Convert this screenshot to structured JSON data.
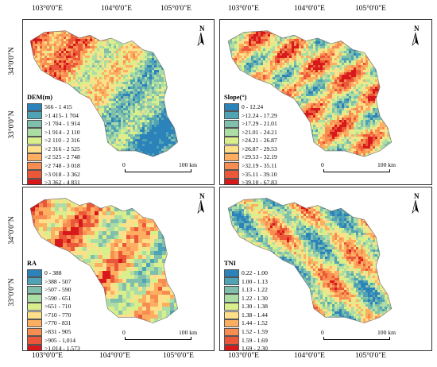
{
  "axes": {
    "top": [
      "103°0'0\"E",
      "104°0'0\"E",
      "105°0'0\"E"
    ],
    "bottom": [
      "103°0'0\"E",
      "104°0'0\"E",
      "105°0'0\"E"
    ],
    "left_top": [
      "34°0'0\"N",
      "33°0'0\"N"
    ],
    "left_bottom": [
      "34°0'0\"N",
      "33°0'0\"N"
    ]
  },
  "panels": [
    {
      "id": "dem",
      "legend_title": "DEM(m)",
      "classes": [
        "566 - 1 415",
        ">1 415- 1 704",
        ">1 704 - 1 914",
        ">1 914 - 2 110",
        ">2 110 - 2 316",
        ">2 316 - 2 525",
        ">2 525 - 2 748",
        ">2 748 - 3 018",
        ">3 018 - 3 362",
        ">3 362 - 4 831"
      ],
      "colors": [
        "#2b83ba",
        "#4fa3b4",
        "#80bfac",
        "#abdda4",
        "#d9ef8b",
        "#fee08b",
        "#fdae61",
        "#f88d52",
        "#ea5739",
        "#d7191c"
      ],
      "north": "N",
      "scale": {
        "start": "0",
        "end": "100 km"
      }
    },
    {
      "id": "slope",
      "legend_title": "Slope(°)",
      "classes": [
        "0 - 12.24",
        ">12.24 - 17.29",
        ">17.29 - 21.01",
        ">21.01 - 24.21",
        ">24.21 - 26.87",
        ">26.87 - 29.53",
        ">29.53 - 32.19",
        ">32.19 - 35.11",
        ">35.11 - 39.10",
        ">39.10 - 67.83"
      ],
      "colors": [
        "#2b83ba",
        "#4fa3b4",
        "#80bfac",
        "#abdda4",
        "#d9ef8b",
        "#fee08b",
        "#fdae61",
        "#f88d52",
        "#ea5739",
        "#d7191c"
      ],
      "north": "N",
      "scale": {
        "start": "0",
        "end": "100 km"
      }
    },
    {
      "id": "ra",
      "legend_title": "RA",
      "classes": [
        "0 - 388",
        ">388 - 507",
        ">507 - 590",
        ">590 - 651",
        ">651 - 710",
        ">710 - 770",
        ">770 - 831",
        ">831 - 905",
        ">905 - 1,014",
        ">1,014 - 1,573"
      ],
      "colors": [
        "#2b83ba",
        "#4fa3b4",
        "#80bfac",
        "#abdda4",
        "#d9ef8b",
        "#fee08b",
        "#fdae61",
        "#f88d52",
        "#ea5739",
        "#d7191c"
      ],
      "north": "N",
      "scale": {
        "start": "0",
        "end": "100 km"
      }
    },
    {
      "id": "tni",
      "legend_title": "TNI",
      "classes": [
        "0.22 - 1.00",
        "1.00 - 1.13",
        "1.13 - 1.22",
        "1.22 - 1.30",
        "1.30 - 1.38",
        "1.38 - 1.44",
        "1.44 - 1.52",
        "1.52 - 1.59",
        "1.59 - 1.69",
        "1.69 - 2.30"
      ],
      "colors": [
        "#2b83ba",
        "#4fa3b4",
        "#80bfac",
        "#abdda4",
        "#d9ef8b",
        "#fee08b",
        "#fdae61",
        "#f88d52",
        "#ea5739",
        "#d7191c"
      ],
      "north": "N",
      "scale": {
        "start": "0",
        "end": "100 km"
      }
    }
  ]
}
